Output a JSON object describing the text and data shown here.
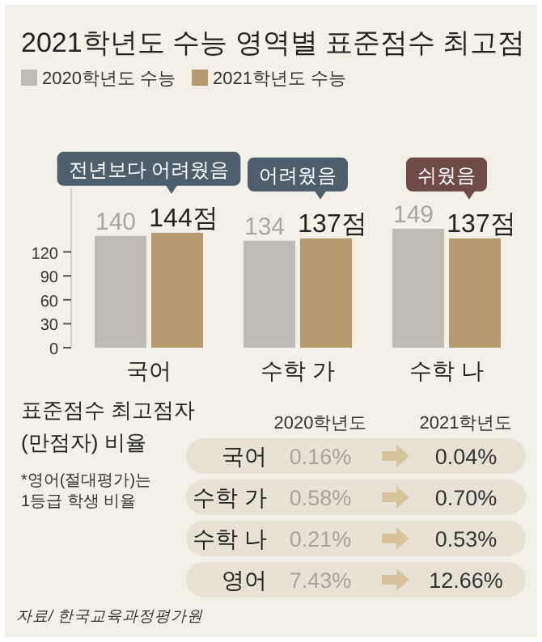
{
  "chart_data": [
    {
      "type": "bar",
      "title": "2021학년도 수능 영역별 표준점수 최고점",
      "categories": [
        "국어",
        "수학 가",
        "수학 나"
      ],
      "series": [
        {
          "name": "2020학년도 수능",
          "color": "#bdbbb3",
          "values": [
            140,
            134,
            149
          ],
          "value_labels": [
            "140",
            "134",
            "149"
          ]
        },
        {
          "name": "2021학년도 수능",
          "color": "#b59b6d",
          "values": [
            144,
            137,
            137
          ],
          "value_labels": [
            "144점",
            "137점",
            "137점"
          ]
        }
      ],
      "ylim": [
        0,
        200
      ],
      "yticks": [
        0,
        30,
        60,
        90,
        120
      ],
      "legend": "top left",
      "grid": false,
      "annotations": [
        {
          "text": "전년보다 어려웠음",
          "x": "국어",
          "y": 144
        },
        {
          "text": "어려웠음",
          "x": "수학 가",
          "y": 137
        },
        {
          "text": "쉬웠음",
          "x": "수학 나",
          "y": 137
        }
      ]
    },
    {
      "type": "other",
      "title": "표준점수 최고점자 (만점자) 비율",
      "categories": [
        "국어",
        "수학 가",
        "수학 나",
        "영어"
      ],
      "series": [
        {
          "name": "2020학년도",
          "values": [
            0.16,
            0.58,
            0.21,
            7.43
          ],
          "value_labels": [
            "0.16%",
            "0.58%",
            "0.21%",
            "7.43%"
          ]
        },
        {
          "name": "2021학년도",
          "values": [
            0.04,
            0.7,
            0.53,
            12.66
          ],
          "value_labels": [
            "0.04%",
            "0.70%",
            "0.53%",
            "12.66%"
          ]
        }
      ],
      "annotations": [
        "*영어(절대평가)는 1등급 학생 비율",
        "자료/ 한국교육과정평가원"
      ]
    }
  ]
}
